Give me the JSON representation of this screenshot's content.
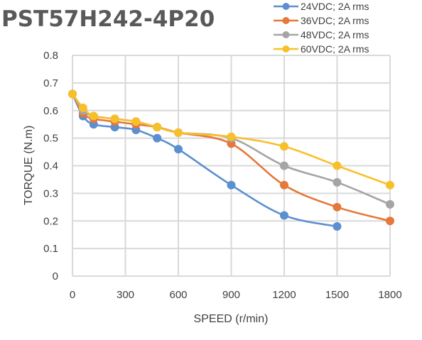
{
  "chart_data": {
    "type": "line",
    "title": "PST57H242-4P20",
    "xlabel": "SPEED (r/min)",
    "ylabel": "TORQUE (N.m)",
    "xlim": [
      0,
      1800
    ],
    "ylim": [
      0,
      0.8
    ],
    "x_ticks": [
      "0",
      "300",
      "600",
      "900",
      "1200",
      "1500",
      "1800"
    ],
    "y_ticks": [
      "0",
      "0.1",
      "0.2",
      "0.3",
      "0.4",
      "0.5",
      "0.6",
      "0.7",
      "0.8"
    ],
    "grid": true,
    "legend_position": "top-right",
    "series": [
      {
        "name": "24VDC; 2A rms",
        "color": "#5b8fd0",
        "x": [
          0,
          60,
          120,
          240,
          360,
          480,
          600,
          900,
          1200,
          1500
        ],
        "y": [
          0.66,
          0.58,
          0.55,
          0.54,
          0.53,
          0.5,
          0.46,
          0.33,
          0.22,
          0.18
        ]
      },
      {
        "name": "36VDC; 2A rms",
        "color": "#e5783a",
        "x": [
          0,
          60,
          120,
          240,
          360,
          480,
          600,
          900,
          1200,
          1500,
          1800
        ],
        "y": [
          0.66,
          0.59,
          0.57,
          0.56,
          0.55,
          0.54,
          0.52,
          0.48,
          0.33,
          0.25,
          0.2
        ]
      },
      {
        "name": "48VDC; 2A rms",
        "color": "#a5a5a5",
        "x": [
          0,
          60,
          120,
          240,
          360,
          480,
          600,
          900,
          1200,
          1500,
          1800
        ],
        "y": [
          0.66,
          0.6,
          0.58,
          0.57,
          0.56,
          0.54,
          0.52,
          0.5,
          0.4,
          0.34,
          0.26
        ]
      },
      {
        "name": "60VDC; 2A rms",
        "color": "#f7c02b",
        "x": [
          0,
          60,
          120,
          240,
          360,
          480,
          600,
          900,
          1200,
          1500,
          1800
        ],
        "y": [
          0.66,
          0.61,
          0.58,
          0.57,
          0.56,
          0.54,
          0.52,
          0.505,
          0.47,
          0.4,
          0.33
        ]
      }
    ]
  }
}
